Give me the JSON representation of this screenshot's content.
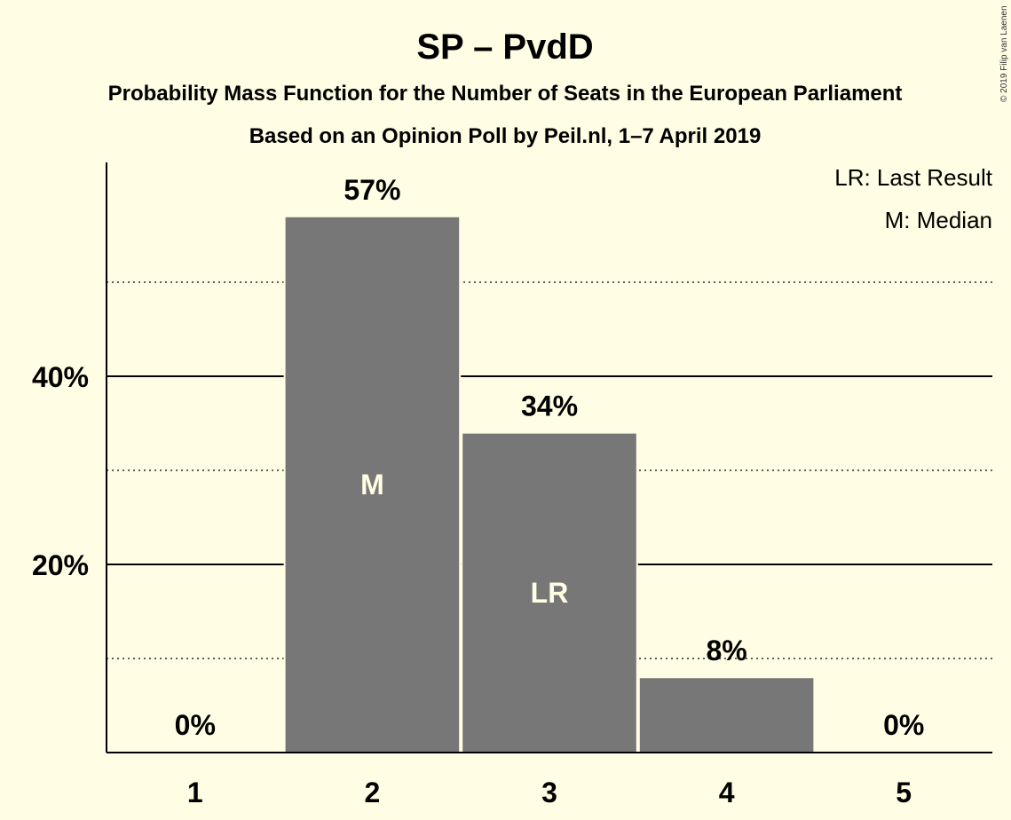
{
  "chart_data": {
    "type": "bar",
    "title": "SP – PvdD",
    "subtitle": "Probability Mass Function for the Number of Seats in the European Parliament",
    "subtitle2": "Based on an Opinion Poll by Peil.nl, 1–7 April 2019",
    "categories": [
      "1",
      "2",
      "3",
      "4",
      "5"
    ],
    "values": [
      0,
      57,
      34,
      8,
      0
    ],
    "value_labels": [
      "0%",
      "57%",
      "34%",
      "8%",
      "0%"
    ],
    "bar_markers": [
      "",
      "M",
      "LR",
      "",
      ""
    ],
    "y_ticks": [
      {
        "value": 20,
        "label": "20%"
      },
      {
        "value": 40,
        "label": "40%"
      }
    ],
    "minor_grid": [
      10,
      30,
      50
    ],
    "ylim": [
      0,
      62
    ],
    "bar_color": "#777777",
    "legend": {
      "placement": "top-right",
      "items": [
        "LR: Last Result",
        "M: Median"
      ]
    },
    "copyright": "© 2019 Filip van Laenen"
  }
}
